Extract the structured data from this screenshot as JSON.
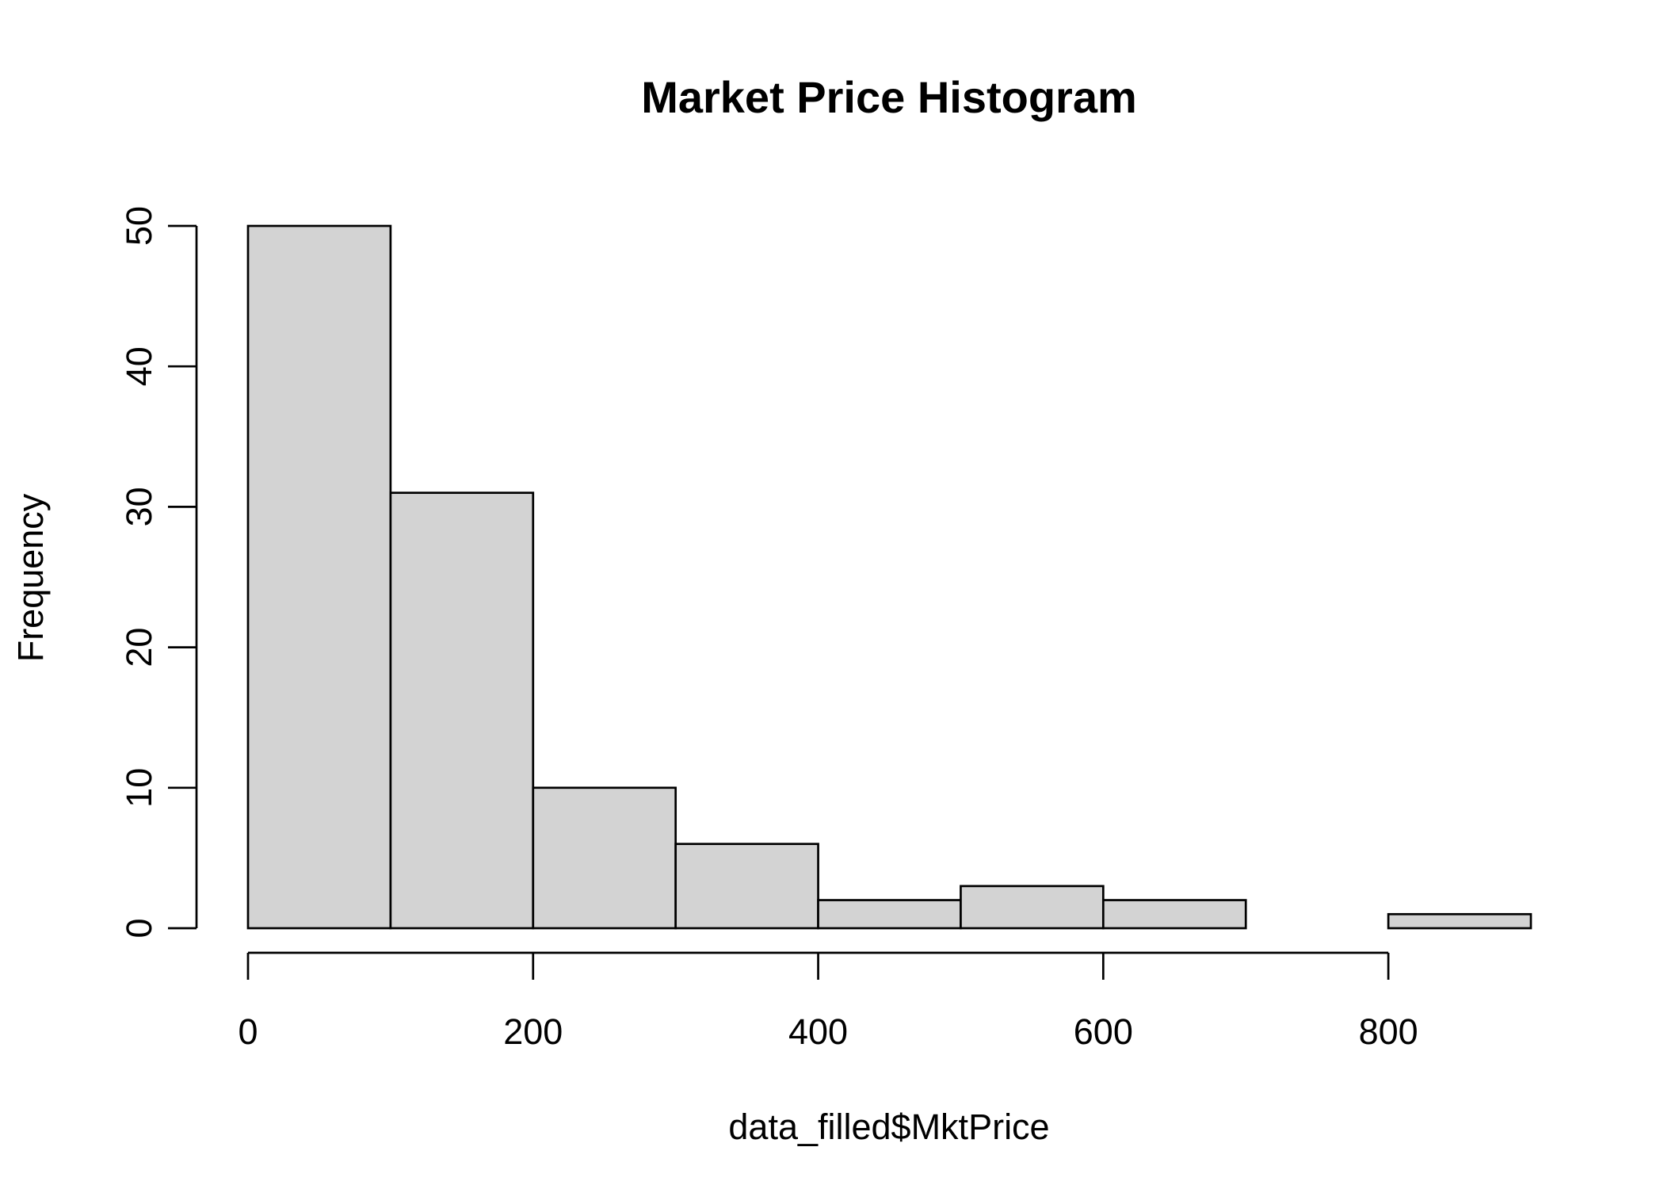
{
  "chart_data": {
    "type": "bar",
    "subtype": "histogram",
    "title": "Market Price Histogram",
    "xlabel": "data_filled$MktPrice",
    "ylabel": "Frequency",
    "bins": [
      {
        "start": 0,
        "end": 100,
        "count": 50
      },
      {
        "start": 100,
        "end": 200,
        "count": 31
      },
      {
        "start": 200,
        "end": 300,
        "count": 10
      },
      {
        "start": 300,
        "end": 400,
        "count": 6
      },
      {
        "start": 400,
        "end": 500,
        "count": 2
      },
      {
        "start": 500,
        "end": 600,
        "count": 3
      },
      {
        "start": 600,
        "end": 700,
        "count": 2
      },
      {
        "start": 700,
        "end": 800,
        "count": 0
      },
      {
        "start": 800,
        "end": 900,
        "count": 1
      }
    ],
    "xlim": [
      0,
      900
    ],
    "ylim": [
      0,
      50
    ],
    "xticks": [
      0,
      200,
      400,
      600,
      800
    ],
    "yticks": [
      0,
      10,
      20,
      30,
      40,
      50
    ],
    "bar_color": "#d3d3d3",
    "edge_color": "#000000",
    "grid": false
  }
}
